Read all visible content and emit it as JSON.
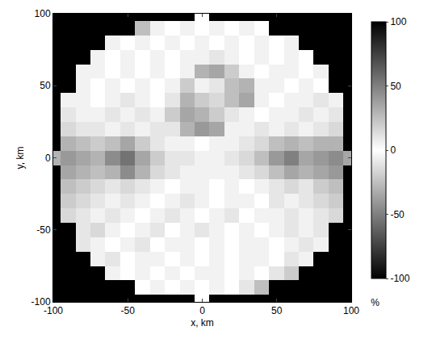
{
  "chart_data": {
    "type": "heatmap",
    "x_label": "x, km",
    "y_label": "y, km",
    "x": [
      -100,
      -90,
      -80,
      -70,
      -60,
      -50,
      -40,
      -30,
      -20,
      -10,
      0,
      10,
      20,
      30,
      40,
      50,
      60,
      70,
      80,
      90,
      100
    ],
    "y": [
      -100,
      -90,
      -80,
      -70,
      -60,
      -50,
      -40,
      -30,
      -20,
      -10,
      0,
      10,
      20,
      30,
      40,
      50,
      60,
      70,
      80,
      90,
      100
    ],
    "cells": [
      [
        null,
        null,
        null,
        null,
        null,
        null,
        null,
        null,
        null,
        null,
        0,
        null,
        null,
        null,
        null,
        null,
        null,
        null,
        null,
        null,
        null
      ],
      [
        null,
        null,
        null,
        null,
        null,
        null,
        0,
        5,
        0,
        -5,
        0,
        5,
        0,
        10,
        25,
        null,
        null,
        null,
        null,
        null,
        null
      ],
      [
        null,
        null,
        null,
        null,
        5,
        0,
        -5,
        0,
        5,
        0,
        5,
        -5,
        0,
        5,
        0,
        10,
        20,
        null,
        null,
        null,
        null
      ],
      [
        null,
        null,
        null,
        5,
        10,
        0,
        5,
        -5,
        0,
        5,
        0,
        5,
        0,
        -5,
        5,
        0,
        10,
        5,
        null,
        null,
        null
      ],
      [
        null,
        null,
        10,
        5,
        0,
        5,
        10,
        0,
        -5,
        5,
        0,
        5,
        0,
        5,
        -5,
        0,
        5,
        10,
        5,
        null,
        null
      ],
      [
        null,
        null,
        10,
        15,
        5,
        0,
        5,
        10,
        0,
        5,
        10,
        5,
        0,
        5,
        0,
        5,
        10,
        5,
        10,
        null,
        null
      ],
      [
        null,
        15,
        10,
        5,
        10,
        5,
        0,
        5,
        10,
        5,
        0,
        5,
        10,
        0,
        5,
        5,
        10,
        5,
        10,
        15,
        null
      ],
      [
        null,
        20,
        15,
        10,
        5,
        10,
        5,
        0,
        5,
        10,
        5,
        0,
        5,
        5,
        0,
        10,
        5,
        10,
        15,
        20,
        null
      ],
      [
        null,
        25,
        20,
        15,
        10,
        15,
        10,
        5,
        0,
        5,
        5,
        0,
        5,
        0,
        5,
        10,
        15,
        10,
        20,
        25,
        null
      ],
      [
        null,
        35,
        30,
        25,
        30,
        45,
        30,
        15,
        10,
        5,
        5,
        5,
        5,
        10,
        15,
        25,
        35,
        30,
        35,
        40,
        null
      ],
      [
        30,
        40,
        35,
        30,
        45,
        55,
        35,
        20,
        10,
        10,
        5,
        5,
        10,
        15,
        25,
        40,
        50,
        35,
        40,
        45,
        35
      ],
      [
        null,
        30,
        25,
        20,
        25,
        35,
        20,
        10,
        5,
        5,
        0,
        5,
        5,
        10,
        15,
        25,
        30,
        25,
        30,
        30,
        null
      ],
      [
        null,
        15,
        10,
        10,
        5,
        10,
        5,
        10,
        10,
        30,
        40,
        35,
        5,
        5,
        10,
        5,
        10,
        5,
        10,
        15,
        null
      ],
      [
        null,
        10,
        5,
        5,
        10,
        5,
        10,
        5,
        20,
        35,
        30,
        20,
        10,
        5,
        0,
        5,
        5,
        10,
        5,
        10,
        null
      ],
      [
        null,
        5,
        5,
        0,
        5,
        10,
        5,
        0,
        10,
        30,
        20,
        15,
        25,
        35,
        5,
        0,
        5,
        5,
        10,
        5,
        null
      ],
      [
        null,
        null,
        5,
        0,
        5,
        0,
        5,
        0,
        5,
        20,
        5,
        10,
        25,
        30,
        5,
        5,
        0,
        5,
        0,
        null,
        null
      ],
      [
        null,
        null,
        5,
        5,
        0,
        5,
        0,
        5,
        0,
        5,
        30,
        35,
        20,
        5,
        0,
        5,
        5,
        0,
        5,
        null,
        null
      ],
      [
        null,
        null,
        null,
        5,
        0,
        5,
        0,
        5,
        0,
        5,
        5,
        10,
        5,
        0,
        5,
        0,
        5,
        0,
        null,
        null,
        null
      ],
      [
        null,
        null,
        null,
        null,
        5,
        0,
        5,
        0,
        5,
        0,
        5,
        0,
        5,
        0,
        5,
        0,
        5,
        null,
        null,
        null,
        null
      ],
      [
        null,
        null,
        null,
        null,
        null,
        null,
        25,
        5,
        0,
        5,
        0,
        5,
        0,
        5,
        0,
        null,
        null,
        null,
        null,
        null,
        null
      ],
      [
        null,
        null,
        null,
        null,
        null,
        null,
        null,
        null,
        null,
        null,
        0,
        null,
        null,
        null,
        null,
        null,
        null,
        null,
        null,
        null,
        null
      ]
    ],
    "xlim": [
      -100,
      100
    ],
    "ylim": [
      -100,
      100
    ],
    "xticks": [
      -100,
      -50,
      0,
      50,
      100
    ],
    "yticks": [
      -100,
      -50,
      0,
      50,
      100
    ],
    "color_range": [
      -100,
      100
    ],
    "color_ticks": [
      -100,
      -50,
      0,
      50,
      100
    ],
    "colorbar_label": "%"
  }
}
